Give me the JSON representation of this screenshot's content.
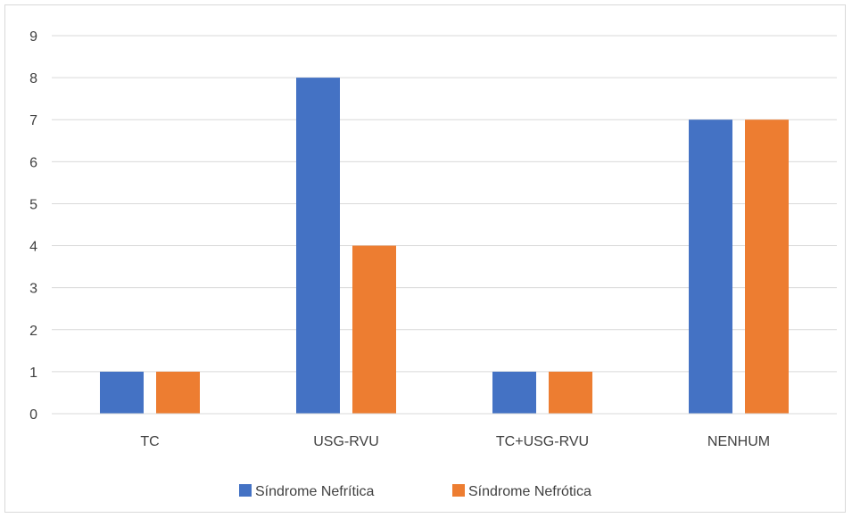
{
  "chart_data": {
    "type": "bar",
    "categories": [
      "TC",
      "USG-RVU",
      "TC+USG-RVU",
      "NENHUM"
    ],
    "series": [
      {
        "name": "Síndrome Nefrítica",
        "values": [
          1,
          8,
          1,
          7
        ],
        "color": "#4472c4"
      },
      {
        "name": "Síndrome Nefrótica",
        "values": [
          1,
          4,
          1,
          7
        ],
        "color": "#ed7d31"
      }
    ],
    "yticks": [
      "0",
      "1",
      "2",
      "3",
      "4",
      "5",
      "6",
      "7",
      "8",
      "9"
    ],
    "ylim": [
      0,
      9
    ],
    "grid": true,
    "legend": "bottom-center"
  }
}
